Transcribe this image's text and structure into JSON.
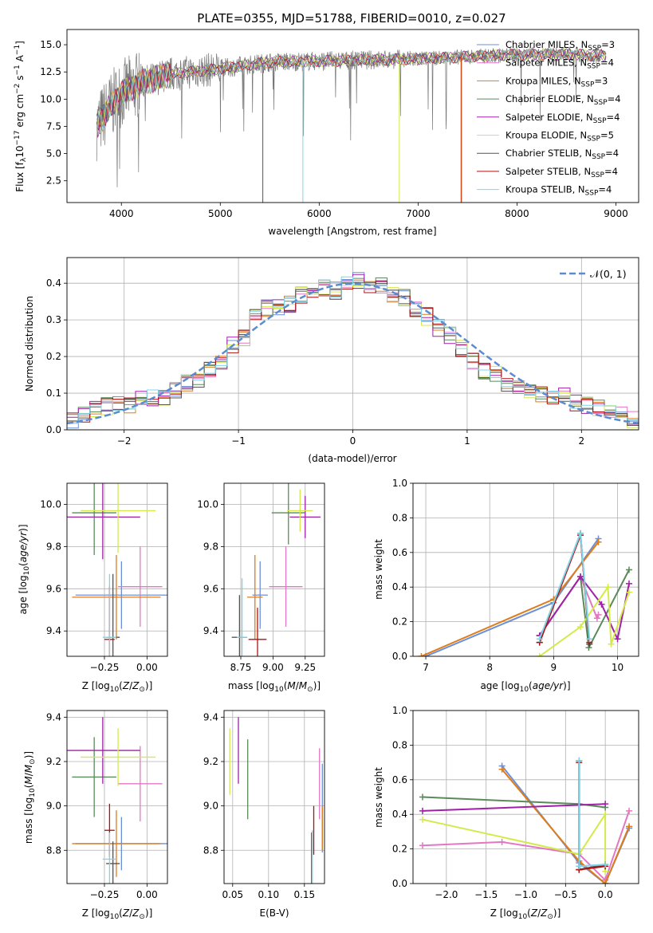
{
  "figure_title": "PLATE=0355, MJD=51788, FIBERID=0010, z=0.027",
  "colors": {
    "Chabrier MILES": "#6b8fd6",
    "Salpeter MILES": "#e377c2",
    "Kroupa MILES": "#e07b1a",
    "Chabrier ELODIE": "#5a8a5a",
    "Salpeter ELODIE": "#a020a8",
    "Kroupa ELODIE": "#d4ea4a",
    "Chabrier STELIB": "#555555",
    "Salpeter STELIB": "#b01010",
    "Kroupa STELIB": "#80d4e8"
  },
  "chart_data": [
    {
      "id": "spectrum",
      "type": "line",
      "xlabel": "wavelength [Angstrom, rest frame]",
      "ylabel": "Flux [f_λ10^-17 erg cm^-2 s^-1 A^-1]",
      "xlim": [
        3450,
        9230
      ],
      "ylim": [
        0.5,
        16.4
      ],
      "xticks": [
        4000,
        5000,
        6000,
        7000,
        8000,
        9000
      ],
      "yticks": [
        2.5,
        5.0,
        7.5,
        10.0,
        12.5,
        15.0
      ],
      "legend_position": "upper-right",
      "legend": [
        "Chabrier MILES, N_SSP=3",
        "Salpeter MILES, N_SSP=4",
        "Kroupa MILES, N_SSP=3",
        "Chabrier ELODIE, N_SSP=4",
        "Salpeter ELODIE, N_SSP=4",
        "Kroupa ELODIE, N_SSP=5",
        "Chabrier STELIB, N_SSP=4",
        "Salpeter STELIB, N_SSP=4",
        "Kroupa STELIB, N_SSP=4"
      ],
      "continuum": {
        "x": [
          3750,
          3900,
          4000,
          4200,
          4500,
          5000,
          5500,
          6000,
          6500,
          7000,
          7500,
          8000,
          8500,
          8900
        ],
        "y": [
          7.5,
          9.5,
          10.5,
          11.5,
          12.3,
          12.8,
          13.4,
          13.5,
          13.6,
          13.7,
          13.9,
          14.1,
          14.1,
          14.0
        ]
      }
    },
    {
      "id": "residual_histogram",
      "type": "histogram",
      "xlabel": "(data-model)/error",
      "ylabel": "Normed distribution",
      "xlim": [
        -2.5,
        2.5
      ],
      "ylim": [
        0.0,
        0.47
      ],
      "xticks": [
        -2,
        -1,
        0,
        1,
        2
      ],
      "yticks": [
        0.0,
        0.1,
        0.2,
        0.3,
        0.4
      ],
      "grid": true,
      "bins": [
        -2.5,
        -2.4,
        -2.3,
        -2.2,
        -2.1,
        -2.0,
        -1.9,
        -1.8,
        -1.7,
        -1.6,
        -1.5,
        -1.4,
        -1.3,
        -1.2,
        -1.1,
        -1.0,
        -0.9,
        -0.8,
        -0.7,
        -0.6,
        -0.5,
        -0.4,
        -0.3,
        -0.2,
        -0.1,
        0.0,
        0.1,
        0.2,
        0.3,
        0.4,
        0.5,
        0.6,
        0.7,
        0.8,
        0.9,
        1.0,
        1.1,
        1.2,
        1.3,
        1.4,
        1.5,
        1.6,
        1.7,
        1.8,
        1.9,
        2.0,
        2.1,
        2.2,
        2.3,
        2.4,
        2.5
      ],
      "density": [
        0.03,
        0.04,
        0.055,
        0.065,
        0.07,
        0.065,
        0.08,
        0.085,
        0.09,
        0.105,
        0.13,
        0.14,
        0.165,
        0.19,
        0.23,
        0.25,
        0.31,
        0.33,
        0.33,
        0.34,
        0.37,
        0.385,
        0.385,
        0.38,
        0.4,
        0.41,
        0.395,
        0.39,
        0.37,
        0.36,
        0.33,
        0.31,
        0.28,
        0.26,
        0.22,
        0.19,
        0.16,
        0.15,
        0.12,
        0.11,
        0.1,
        0.1,
        0.09,
        0.09,
        0.075,
        0.065,
        0.06,
        0.045,
        0.04,
        0.03
      ],
      "legend": [
        "𝒩(0, 1)"
      ],
      "legend_position": "upper-right"
    },
    {
      "id": "age_vs_Z",
      "type": "errorbar",
      "xlabel": "Z [log10(Z/Z⊙)]",
      "ylabel": "age  [log10(age/yr)]",
      "xlim": [
        -0.47,
        0.12
      ],
      "ylim": [
        9.28,
        10.1
      ],
      "xticks": [
        -0.25,
        0.0
      ],
      "yticks": [
        9.4,
        9.6,
        9.8,
        10.0
      ],
      "points": [
        {
          "series": "Chabrier MILES",
          "x": -0.15,
          "y": 9.57,
          "xerr": 0.27,
          "yerr": 0.16
        },
        {
          "series": "Salpeter MILES",
          "x": -0.04,
          "y": 9.61,
          "xerr": 0.13,
          "yerr": 0.19
        },
        {
          "series": "Kroupa MILES",
          "x": -0.18,
          "y": 9.56,
          "xerr": 0.26,
          "yerr": 0.2
        },
        {
          "series": "Chabrier ELODIE",
          "x": -0.31,
          "y": 9.96,
          "xerr": 0.13,
          "yerr": 0.2
        },
        {
          "series": "Salpeter ELODIE",
          "x": -0.26,
          "y": 9.94,
          "xerr": 0.22,
          "yerr": 0.2
        },
        {
          "series": "Kroupa ELODIE",
          "x": -0.17,
          "y": 9.97,
          "xerr": 0.22,
          "yerr": 0.2
        },
        {
          "series": "Chabrier STELIB",
          "x": -0.2,
          "y": 9.37,
          "xerr": 0.04,
          "yerr": 0.3
        },
        {
          "series": "Salpeter STELIB",
          "x": -0.22,
          "y": 9.36,
          "xerr": 0.03,
          "yerr": 0.25
        },
        {
          "series": "Kroupa STELIB",
          "x": -0.22,
          "y": 9.37,
          "xerr": 0.04,
          "yerr": 0.3
        }
      ]
    },
    {
      "id": "age_vs_mass",
      "type": "errorbar",
      "xlabel": "mass [log10(M/M⊙)]",
      "ylabel": "",
      "xlim": [
        8.62,
        9.4
      ],
      "ylim": [
        9.28,
        10.1
      ],
      "xticks": [
        8.75,
        9.0,
        9.25
      ],
      "yticks": [
        9.4,
        9.6,
        9.8,
        10.0
      ],
      "points": [
        {
          "series": "Chabrier MILES",
          "x": 8.9,
          "y": 9.57,
          "xerr": 0.06,
          "yerr": 0.16
        },
        {
          "series": "Salpeter MILES",
          "x": 9.1,
          "y": 9.61,
          "xerr": 0.13,
          "yerr": 0.19
        },
        {
          "series": "Kroupa MILES",
          "x": 8.86,
          "y": 9.56,
          "xerr": 0.06,
          "yerr": 0.2
        },
        {
          "series": "Chabrier ELODIE",
          "x": 9.12,
          "y": 9.96,
          "xerr": 0.13,
          "yerr": 0.15
        },
        {
          "series": "Salpeter ELODIE",
          "x": 9.25,
          "y": 9.94,
          "xerr": 0.12,
          "yerr": 0.1
        },
        {
          "series": "Kroupa ELODIE",
          "x": 9.21,
          "y": 9.97,
          "xerr": 0.1,
          "yerr": 0.1
        },
        {
          "series": "Chabrier STELIB",
          "x": 8.74,
          "y": 9.37,
          "xerr": 0.06,
          "yerr": 0.2
        },
        {
          "series": "Salpeter STELIB",
          "x": 8.88,
          "y": 9.36,
          "xerr": 0.07,
          "yerr": 0.15
        },
        {
          "series": "Kroupa STELIB",
          "x": 8.76,
          "y": 9.37,
          "xerr": 0.04,
          "yerr": 0.28
        }
      ]
    },
    {
      "id": "mass_weight_vs_age",
      "type": "line",
      "xlabel": "age  [log10(age/yr)]",
      "ylabel": "mass weight",
      "xlim": [
        6.8,
        10.33
      ],
      "ylim": [
        0.0,
        1.0
      ],
      "xticks": [
        7,
        8,
        9,
        10
      ],
      "yticks": [
        0.0,
        0.2,
        0.4,
        0.6,
        0.8,
        1.0
      ],
      "grid": true,
      "series": [
        {
          "name": "Chabrier MILES",
          "x": [
            7.0,
            9.0,
            9.7
          ],
          "y": [
            0.0,
            0.31,
            0.68
          ]
        },
        {
          "name": "Salpeter MILES",
          "x": [
            8.78,
            9.42,
            9.68,
            9.7
          ],
          "y": [
            0.12,
            0.46,
            0.22,
            0.24
          ]
        },
        {
          "name": "Kroupa MILES",
          "x": [
            6.93,
            9.0,
            9.7
          ],
          "y": [
            0.0,
            0.33,
            0.66
          ]
        },
        {
          "name": "Chabrier ELODIE",
          "x": [
            8.78,
            9.42,
            9.55,
            10.18
          ],
          "y": [
            0.12,
            0.46,
            0.05,
            0.5
          ]
        },
        {
          "name": "Salpeter ELODIE",
          "x": [
            8.78,
            9.42,
            9.75,
            10.0,
            10.18
          ],
          "y": [
            0.12,
            0.46,
            0.3,
            0.1,
            0.42
          ]
        },
        {
          "name": "Kroupa ELODIE",
          "x": [
            8.78,
            9.42,
            9.85,
            9.9,
            10.18
          ],
          "y": [
            0.0,
            0.17,
            0.4,
            0.07,
            0.37
          ]
        },
        {
          "name": "Chabrier STELIB",
          "x": [
            8.78,
            9.42,
            9.56
          ],
          "y": [
            0.08,
            0.71,
            0.07
          ]
        },
        {
          "name": "Salpeter STELIB",
          "x": [
            8.78,
            9.42,
            9.56
          ],
          "y": [
            0.08,
            0.7,
            0.08
          ]
        },
        {
          "name": "Kroupa STELIB",
          "x": [
            8.78,
            9.42,
            9.56
          ],
          "y": [
            0.1,
            0.71,
            0.1
          ]
        }
      ]
    },
    {
      "id": "mass_vs_Z",
      "type": "errorbar",
      "xlabel": "Z [log10(Z/Z⊙)]",
      "ylabel": "mass [log10(M/M⊙)]",
      "xlim": [
        -0.47,
        0.12
      ],
      "ylim": [
        8.65,
        9.43
      ],
      "xticks": [
        -0.25,
        0.0
      ],
      "yticks": [
        8.8,
        9.0,
        9.2,
        9.4
      ],
      "points": [
        {
          "series": "Chabrier MILES",
          "x": -0.15,
          "y": 8.83,
          "xerr": 0.27,
          "yerr": 0.12
        },
        {
          "series": "Salpeter MILES",
          "x": -0.04,
          "y": 9.1,
          "xerr": 0.13,
          "yerr": 0.17
        },
        {
          "series": "Kroupa MILES",
          "x": -0.18,
          "y": 8.83,
          "xerr": 0.26,
          "yerr": 0.15
        },
        {
          "series": "Chabrier ELODIE",
          "x": -0.31,
          "y": 9.13,
          "xerr": 0.13,
          "yerr": 0.18
        },
        {
          "series": "Salpeter ELODIE",
          "x": -0.26,
          "y": 9.25,
          "xerr": 0.22,
          "yerr": 0.15
        },
        {
          "series": "Kroupa ELODIE",
          "x": -0.17,
          "y": 9.22,
          "xerr": 0.22,
          "yerr": 0.13
        },
        {
          "series": "Chabrier STELIB",
          "x": -0.2,
          "y": 8.74,
          "xerr": 0.04,
          "yerr": 0.1
        },
        {
          "series": "Salpeter STELIB",
          "x": -0.22,
          "y": 8.89,
          "xerr": 0.03,
          "yerr": 0.12
        },
        {
          "series": "Kroupa STELIB",
          "x": -0.22,
          "y": 8.76,
          "xerr": 0.04,
          "yerr": 0.12
        }
      ]
    },
    {
      "id": "mass_vs_EBV",
      "type": "errorbar",
      "xlabel": "E(B-V)",
      "ylabel": "",
      "xlim": [
        0.038,
        0.178
      ],
      "ylim": [
        8.65,
        9.43
      ],
      "xticks": [
        0.05,
        0.1,
        0.15
      ],
      "yticks": [
        8.8,
        9.0,
        9.2,
        9.4
      ],
      "points": [
        {
          "series": "Chabrier MILES",
          "x": 0.175,
          "y": 8.99,
          "yerr": 0.2
        },
        {
          "series": "Salpeter MILES",
          "x": 0.171,
          "y": 9.1,
          "yerr": 0.16
        },
        {
          "series": "Kroupa MILES",
          "x": 0.175,
          "y": 8.9,
          "yerr": 0.1
        },
        {
          "series": "Chabrier ELODIE",
          "x": 0.071,
          "y": 9.12,
          "yerr": 0.18
        },
        {
          "series": "Salpeter ELODIE",
          "x": 0.058,
          "y": 9.25,
          "yerr": 0.15
        },
        {
          "series": "Kroupa ELODIE",
          "x": 0.046,
          "y": 9.2,
          "yerr": 0.15
        },
        {
          "series": "Chabrier STELIB",
          "x": 0.16,
          "y": 8.76,
          "yerr": 0.12
        },
        {
          "series": "Salpeter STELIB",
          "x": 0.163,
          "y": 8.89,
          "yerr": 0.11
        },
        {
          "series": "Kroupa STELIB",
          "x": 0.161,
          "y": 8.77,
          "yerr": 0.12
        }
      ]
    },
    {
      "id": "mass_weight_vs_Z",
      "type": "line",
      "xlabel": "Z [log10(Z/Z⊙)]",
      "ylabel": "mass weight",
      "xlim": [
        -2.42,
        0.42
      ],
      "ylim": [
        0.0,
        1.0
      ],
      "xticks": [
        -2.0,
        -1.5,
        -1.0,
        -0.5,
        0.0
      ],
      "yticks": [
        0.0,
        0.2,
        0.4,
        0.6,
        0.8,
        1.0
      ],
      "grid": true,
      "series": [
        {
          "name": "Chabrier MILES",
          "x": [
            -1.3,
            -0.33,
            0.0,
            0.3
          ],
          "y": [
            0.68,
            0.12,
            0.0,
            0.32
          ]
        },
        {
          "name": "Salpeter MILES",
          "x": [
            -2.3,
            -1.3,
            -0.33,
            0.0,
            0.3
          ],
          "y": [
            0.22,
            0.24,
            0.17,
            0.02,
            0.42
          ]
        },
        {
          "name": "Kroupa MILES",
          "x": [
            -1.3,
            -0.33,
            0.0,
            0.3
          ],
          "y": [
            0.66,
            0.13,
            0.0,
            0.33
          ]
        },
        {
          "name": "Chabrier ELODIE",
          "x": [
            -2.3,
            -0.33,
            0.0
          ],
          "y": [
            0.5,
            0.46,
            0.44
          ]
        },
        {
          "name": "Salpeter ELODIE",
          "x": [
            -2.3,
            0.0
          ],
          "y": [
            0.42,
            0.46
          ]
        },
        {
          "name": "Kroupa ELODIE",
          "x": [
            -2.3,
            -0.33,
            0.0,
            0.0
          ],
          "y": [
            0.37,
            0.17,
            0.4,
            0.07
          ]
        },
        {
          "name": "Chabrier STELIB",
          "x": [
            -0.33,
            -0.33,
            0.0
          ],
          "y": [
            0.71,
            0.08,
            0.11
          ]
        },
        {
          "name": "Salpeter STELIB",
          "x": [
            -0.33,
            -0.33,
            0.0
          ],
          "y": [
            0.7,
            0.08,
            0.1
          ]
        },
        {
          "name": "Kroupa STELIB",
          "x": [
            -0.33,
            -0.33,
            0.0
          ],
          "y": [
            0.71,
            0.1,
            0.11
          ]
        }
      ]
    }
  ]
}
